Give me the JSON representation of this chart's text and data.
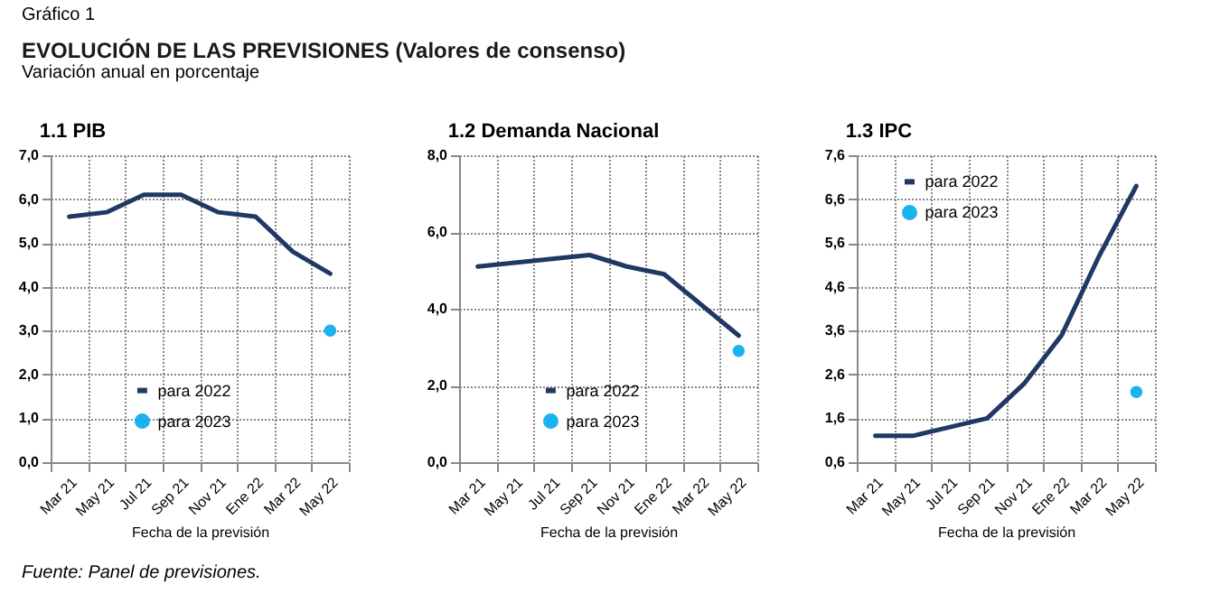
{
  "chart_data": [
    {
      "type": "line",
      "title": "1.1 PIB",
      "xlabel": "Fecha de la previsión",
      "annotations": [
        "Gráfico 1",
        "EVOLUCIÓN DE LAS PREVISIONES (Valores de consenso)",
        "Variación anual en porcentaje",
        "Fuente: Panel de previsiones."
      ],
      "categories": [
        "Mar 21",
        "May 21",
        "Jul 21",
        "Sep 21",
        "Nov 21",
        "Ene 22",
        "Mar 22",
        "May 22"
      ],
      "series": [
        {
          "name": "para 2022",
          "color": "#1f3864",
          "values": [
            5.6,
            5.7,
            6.1,
            6.1,
            5.7,
            5.6,
            4.8,
            4.3
          ]
        },
        {
          "name": "para 2023",
          "type": "scatter",
          "marker": "circle",
          "color": "#1ab2ef",
          "values": [
            null,
            null,
            null,
            null,
            null,
            null,
            null,
            3.0
          ]
        }
      ],
      "ylim": [
        0,
        7
      ],
      "yticks": [
        {
          "value": 0,
          "label": "0,0"
        },
        {
          "value": 1,
          "label": "1,0"
        },
        {
          "value": 2,
          "label": "2,0"
        },
        {
          "value": 3,
          "label": "3,0"
        },
        {
          "value": 4,
          "label": "4,0"
        },
        {
          "value": 5,
          "label": "5,0"
        },
        {
          "value": 6,
          "label": "6,0"
        },
        {
          "value": 7,
          "label": "7,0"
        }
      ],
      "grid": true,
      "legend": "bottom"
    },
    {
      "type": "line",
      "title": "1.2 Demanda Nacional",
      "xlabel": "Fecha de la previsión",
      "categories": [
        "Mar 21",
        "May 21",
        "Jul 21",
        "Sep 21",
        "Nov 21",
        "Ene 22",
        "Mar 22",
        "May 22"
      ],
      "series": [
        {
          "name": "para 2022",
          "color": "#1f3864",
          "values": [
            5.1,
            5.2,
            5.3,
            5.4,
            5.1,
            4.9,
            4.1,
            3.3
          ]
        },
        {
          "name": "para 2023",
          "type": "scatter",
          "marker": "circle",
          "color": "#1ab2ef",
          "values": [
            null,
            null,
            null,
            null,
            null,
            null,
            null,
            2.9
          ]
        }
      ],
      "ylim": [
        0,
        8
      ],
      "yticks": [
        {
          "value": 0,
          "label": "0,0"
        },
        {
          "value": 2,
          "label": "2,0"
        },
        {
          "value": 4,
          "label": "4,0"
        },
        {
          "value": 6,
          "label": "6,0"
        },
        {
          "value": 8,
          "label": "8,0"
        }
      ],
      "grid": true,
      "legend": "bottom"
    },
    {
      "type": "line",
      "title": "1.3 IPC",
      "xlabel": "Fecha de la previsión",
      "categories": [
        "Mar 21",
        "May 21",
        "Jul 21",
        "Sep 21",
        "Nov 21",
        "Ene 22",
        "Mar 22",
        "May 22"
      ],
      "series": [
        {
          "name": "para 2022",
          "color": "#1f3864",
          "values": [
            1.2,
            1.2,
            1.4,
            1.6,
            2.4,
            3.5,
            5.3,
            6.9
          ]
        },
        {
          "name": "para 2023",
          "type": "scatter",
          "marker": "circle",
          "color": "#1ab2ef",
          "values": [
            null,
            null,
            null,
            null,
            null,
            null,
            null,
            2.2
          ]
        }
      ],
      "ylim": [
        0.6,
        7.6
      ],
      "yticks": [
        {
          "value": 0.6,
          "label": "0,6"
        },
        {
          "value": 1.6,
          "label": "1,6"
        },
        {
          "value": 2.6,
          "label": "2,6"
        },
        {
          "value": 3.6,
          "label": "3,6"
        },
        {
          "value": 4.6,
          "label": "4,6"
        },
        {
          "value": 5.6,
          "label": "5,6"
        },
        {
          "value": 6.6,
          "label": "6,6"
        },
        {
          "value": 7.6,
          "label": "7,6"
        }
      ],
      "grid": true,
      "legend": "top left"
    }
  ]
}
